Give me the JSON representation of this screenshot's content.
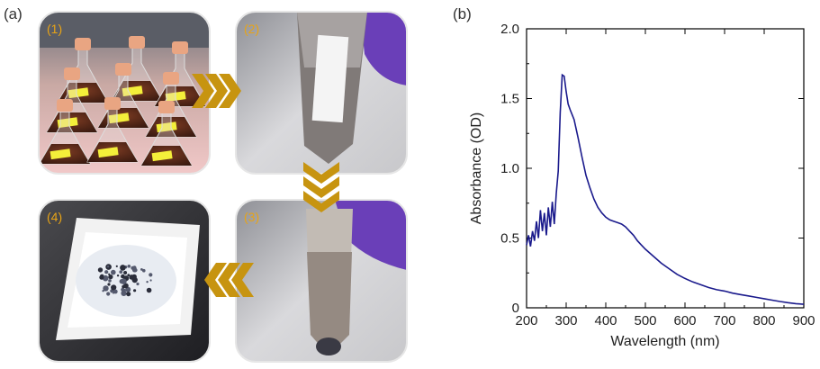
{
  "figure": {
    "panel_a_label": "(a)",
    "panel_b_label": "(b)"
  },
  "steps": [
    {
      "label": "(1)"
    },
    {
      "label": "(2)"
    },
    {
      "label": "(3)"
    },
    {
      "label": "(4)"
    }
  ],
  "colors": {
    "step_label": "#e8a416",
    "arrow": "#c79410",
    "curve": "#1a1a8c",
    "axis": "#000000"
  },
  "chart_data": {
    "type": "line",
    "title": "",
    "xlabel": "Wavelength (nm)",
    "ylabel": "Absorbance (OD)",
    "xlim": [
      200,
      900
    ],
    "ylim": [
      0,
      2.0
    ],
    "x_ticks": [
      200,
      300,
      400,
      500,
      600,
      700,
      800,
      900
    ],
    "y_ticks": [
      0,
      0.5,
      1.0,
      1.5,
      2.0
    ],
    "y_tick_labels": [
      "0",
      "0.5",
      "1.0",
      "1.5",
      "2.0"
    ],
    "grid": false,
    "legend": "none",
    "series": [
      {
        "x": [
          200,
          205,
          210,
          215,
          220,
          225,
          230,
          235,
          240,
          245,
          250,
          255,
          260,
          265,
          270,
          275,
          280,
          285,
          290,
          295,
          300,
          305,
          310,
          320,
          330,
          340,
          350,
          360,
          370,
          380,
          390,
          400,
          410,
          420,
          430,
          440,
          450,
          460,
          470,
          480,
          490,
          500,
          520,
          540,
          560,
          580,
          600,
          620,
          640,
          660,
          680,
          700,
          720,
          740,
          760,
          780,
          800,
          820,
          840,
          860,
          880,
          900
        ],
        "y": [
          0.45,
          0.52,
          0.44,
          0.55,
          0.48,
          0.62,
          0.5,
          0.7,
          0.55,
          0.68,
          0.52,
          0.72,
          0.58,
          0.76,
          0.6,
          0.82,
          0.98,
          1.4,
          1.67,
          1.66,
          1.55,
          1.46,
          1.42,
          1.35,
          1.22,
          1.08,
          0.95,
          0.86,
          0.78,
          0.72,
          0.68,
          0.65,
          0.63,
          0.62,
          0.61,
          0.6,
          0.58,
          0.55,
          0.52,
          0.48,
          0.45,
          0.42,
          0.37,
          0.32,
          0.28,
          0.24,
          0.21,
          0.185,
          0.165,
          0.145,
          0.13,
          0.12,
          0.105,
          0.095,
          0.085,
          0.075,
          0.065,
          0.055,
          0.045,
          0.037,
          0.03,
          0.025
        ]
      }
    ]
  }
}
